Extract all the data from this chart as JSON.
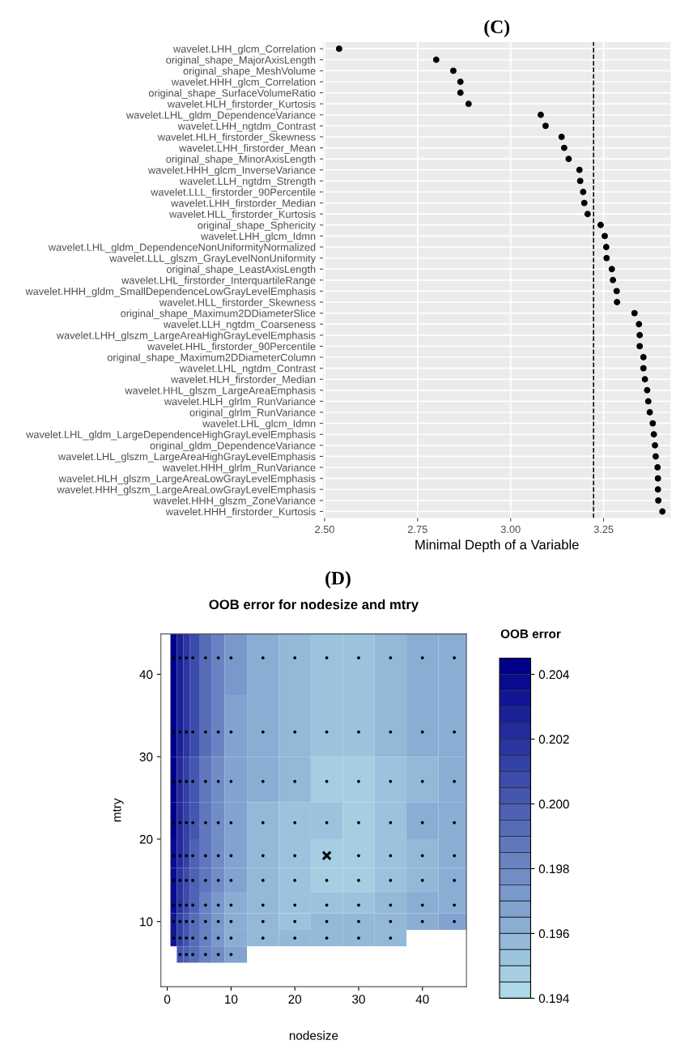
{
  "chart_data": [
    {
      "type": "scatter",
      "title": "(C)",
      "xlabel": "Minimal Depth of a Variable",
      "orientation": "horizontal",
      "color": "#000000",
      "marker": "circle",
      "grid": true,
      "categories": [
        "wavelet.LHH_glcm_Correlation",
        "original_shape_MajorAxisLength",
        "original_shape_MeshVolume",
        "wavelet.HHH_glcm_Correlation",
        "original_shape_SurfaceVolumeRatio",
        "wavelet.HLH_firstorder_Kurtosis",
        "wavelet.LHL_gldm_DependenceVariance",
        "wavelet.LHH_ngtdm_Contrast",
        "wavelet.HLH_firstorder_Skewness",
        "wavelet.LHH_firstorder_Mean",
        "original_shape_MinorAxisLength",
        "wavelet.HHH_glcm_InverseVariance",
        "wavelet.LLH_ngtdm_Strength",
        "wavelet.LLL_firstorder_90Percentile",
        "wavelet.LHH_firstorder_Median",
        "wavelet.HLL_firstorder_Kurtosis",
        "original_shape_Sphericity",
        "wavelet.LHH_glcm_Idmn",
        "wavelet.LHL_gldm_DependenceNonUniformityNormalized",
        "wavelet.LLL_glszm_GrayLevelNonUniformity",
        "original_shape_LeastAxisLength",
        "wavelet.LHL_firstorder_InterquartileRange",
        "wavelet.HHH_gldm_SmallDependenceLowGrayLevelEmphasis",
        "wavelet.HLL_firstorder_Skewness",
        "original_shape_Maximum2DDiameterSlice",
        "wavelet.LLH_ngtdm_Coarseness",
        "wavelet.LHH_glszm_LargeAreaHighGrayLevelEmphasis",
        "wavelet.HHL_firstorder_90Percentile",
        "original_shape_Maximum2DDiameterColumn",
        "wavelet.LHL_ngtdm_Contrast",
        "wavelet.HLH_firstorder_Median",
        "wavelet.HHL_glszm_LargeAreaEmphasis",
        "wavelet.HLH_glrlm_RunVariance",
        "original_glrlm_RunVariance",
        "wavelet.LHL_glcm_Idmn",
        "wavelet.LHL_gldm_LargeDependenceHighGrayLevelEmphasis",
        "original_gldm_DependenceVariance",
        "wavelet.LHL_glszm_LargeAreaHighGrayLevelEmphasis",
        "wavelet.HHH_glrlm_RunVariance",
        "wavelet.HLH_glszm_LargeAreaLowGrayLevelEmphasis",
        "wavelet.HHH_glszm_LargeAreaLowGrayLevelEmphasis",
        "wavelet.HHH_glszm_ZoneVariance",
        "wavelet.HHH_firstorder_Kurtosis"
      ],
      "values": [
        2.539,
        2.8,
        2.846,
        2.865,
        2.865,
        2.887,
        3.081,
        3.094,
        3.137,
        3.144,
        3.156,
        3.185,
        3.187,
        3.195,
        3.198,
        3.207,
        3.242,
        3.253,
        3.257,
        3.258,
        3.272,
        3.275,
        3.285,
        3.286,
        3.333,
        3.345,
        3.347,
        3.347,
        3.357,
        3.357,
        3.361,
        3.367,
        3.37,
        3.374,
        3.382,
        3.385,
        3.388,
        3.39,
        3.395,
        3.396,
        3.396,
        3.397,
        3.408
      ],
      "xlim": [
        2.496,
        3.43
      ],
      "xticks": [
        {
          "value": 2.5,
          "label": "2.50"
        },
        {
          "value": 2.75,
          "label": "2.75"
        },
        {
          "value": 3.0,
          "label": "3.00"
        },
        {
          "value": 3.25,
          "label": "3.25"
        }
      ],
      "ref_lines": [
        {
          "axis": "x",
          "value": 3.223,
          "line_style": "dashed",
          "color": "#000000"
        }
      ]
    },
    {
      "type": "heatmap",
      "title": "(D)",
      "subtitle": "OOB error for nodesize and mtry",
      "xlabel": "nodesize",
      "ylabel": "mtry",
      "clabel": "OOB error",
      "x": [
        1,
        2,
        3,
        4,
        6,
        8,
        10,
        15,
        20,
        25,
        30,
        35,
        40,
        45
      ],
      "y": [
        42,
        33,
        27,
        22,
        18,
        15,
        12,
        10,
        8,
        6
      ],
      "cells": [
        [
          0.2042,
          0.2025,
          0.2015,
          0.2005,
          0.199,
          0.198,
          0.197,
          0.1962,
          0.1957,
          0.1952,
          0.1952,
          0.1958,
          0.1962,
          0.1962
        ],
        [
          0.2042,
          0.2025,
          0.2015,
          0.2005,
          0.199,
          0.198,
          0.1968,
          0.196,
          0.1955,
          0.1952,
          0.1952,
          0.1958,
          0.1962,
          0.1962
        ],
        [
          0.204,
          0.2022,
          0.2012,
          0.2,
          0.1988,
          0.1978,
          0.1968,
          0.196,
          0.1955,
          0.1947,
          0.1947,
          0.1952,
          0.1958,
          0.196
        ],
        [
          0.204,
          0.2022,
          0.201,
          0.2,
          0.1988,
          0.1975,
          0.1965,
          0.1958,
          0.1952,
          0.1952,
          0.1947,
          0.1952,
          0.196,
          0.196
        ],
        [
          0.2038,
          0.202,
          0.201,
          0.1998,
          0.1985,
          0.1975,
          0.1965,
          0.1955,
          0.1952,
          0.1945,
          0.1948,
          0.1952,
          0.1958,
          0.1962
        ],
        [
          0.2035,
          0.2018,
          0.2008,
          0.1998,
          0.1985,
          0.1975,
          0.1965,
          0.1958,
          0.1952,
          0.1947,
          0.1947,
          0.1952,
          0.1958,
          0.1962
        ],
        [
          0.2035,
          0.2015,
          0.2005,
          0.1995,
          0.1982,
          0.1972,
          0.1962,
          0.1955,
          0.1952,
          0.195,
          0.1952,
          0.1955,
          0.196,
          0.1962
        ],
        [
          0.2032,
          0.2012,
          0.2002,
          0.1992,
          0.198,
          0.197,
          0.196,
          0.1955,
          0.1952,
          0.1955,
          0.1955,
          0.1958,
          0.1962,
          0.1965
        ],
        [
          0.203,
          0.201,
          0.2,
          0.199,
          0.198,
          0.197,
          0.196,
          0.1958,
          0.1955,
          0.1955,
          0.1955,
          0.1958,
          null,
          null
        ],
        [
          null,
          0.2,
          0.1995,
          0.199,
          0.198,
          0.1975,
          0.1965,
          null,
          null,
          null,
          null,
          null,
          null,
          null
        ]
      ],
      "clim": [
        0.194,
        0.2045
      ],
      "cticks": [
        {
          "value": 0.194,
          "label": "0.194"
        },
        {
          "value": 0.196,
          "label": "0.196"
        },
        {
          "value": 0.198,
          "label": "0.198"
        },
        {
          "value": 0.2,
          "label": "0.200"
        },
        {
          "value": 0.202,
          "label": "0.202"
        },
        {
          "value": 0.204,
          "label": "0.204"
        }
      ],
      "xlim": [
        -1.0,
        46.9
      ],
      "ylim": [
        2.1,
        44.9
      ],
      "xticks": [
        0,
        10,
        20,
        30,
        40
      ],
      "yticks": [
        10,
        20,
        30,
        40
      ],
      "series": [
        {
          "type": "scatter",
          "color": "#000000",
          "marker": "circle",
          "x": [
            1,
            2,
            3,
            4,
            6,
            8,
            10,
            15,
            20,
            25,
            30,
            35,
            40,
            45
          ],
          "values": [
            42,
            42,
            42,
            42,
            42,
            42,
            42,
            42,
            42,
            42,
            42,
            42,
            42,
            42
          ]
        },
        {
          "type": "scatter",
          "color": "#000000",
          "marker": "circle",
          "x": [
            1,
            2,
            3,
            4,
            6,
            8,
            10,
            15,
            20,
            25,
            30,
            35,
            40,
            45
          ],
          "values": [
            33,
            33,
            33,
            33,
            33,
            33,
            33,
            33,
            33,
            33,
            33,
            33,
            33,
            33
          ]
        },
        {
          "type": "scatter",
          "color": "#000000",
          "marker": "circle",
          "x": [
            1,
            2,
            3,
            4,
            6,
            8,
            10,
            15,
            20,
            25,
            30,
            35,
            40,
            45
          ],
          "values": [
            27,
            27,
            27,
            27,
            27,
            27,
            27,
            27,
            27,
            27,
            27,
            27,
            27,
            27
          ]
        },
        {
          "type": "scatter",
          "color": "#000000",
          "marker": "circle",
          "x": [
            1,
            2,
            3,
            4,
            6,
            8,
            10,
            15,
            20,
            25,
            30,
            35,
            40,
            45
          ],
          "values": [
            22,
            22,
            22,
            22,
            22,
            22,
            22,
            22,
            22,
            22,
            22,
            22,
            22,
            22
          ]
        },
        {
          "type": "scatter",
          "color": "#000000",
          "marker": "circle",
          "x": [
            1,
            2,
            3,
            4,
            6,
            8,
            10,
            15,
            20,
            30,
            35,
            40,
            45
          ],
          "values": [
            18,
            18,
            18,
            18,
            18,
            18,
            18,
            18,
            18,
            18,
            18,
            18,
            18
          ]
        },
        {
          "type": "scatter",
          "color": "#000000",
          "marker": "circle",
          "x": [
            1,
            2,
            3,
            4,
            6,
            8,
            10,
            15,
            20,
            25,
            30,
            35,
            40,
            45
          ],
          "values": [
            15,
            15,
            15,
            15,
            15,
            15,
            15,
            15,
            15,
            15,
            15,
            15,
            15,
            15
          ]
        },
        {
          "type": "scatter",
          "color": "#000000",
          "marker": "circle",
          "x": [
            1,
            2,
            3,
            4,
            6,
            8,
            10,
            15,
            20,
            25,
            30,
            35,
            40,
            45
          ],
          "values": [
            12,
            12,
            12,
            12,
            12,
            12,
            12,
            12,
            12,
            12,
            12,
            12,
            12,
            12
          ]
        },
        {
          "type": "scatter",
          "color": "#000000",
          "marker": "circle",
          "x": [
            1,
            2,
            3,
            4,
            6,
            8,
            10,
            15,
            20,
            25,
            30,
            35,
            40,
            45
          ],
          "values": [
            10,
            10,
            10,
            10,
            10,
            10,
            10,
            10,
            10,
            10,
            10,
            10,
            10,
            10
          ]
        },
        {
          "type": "scatter",
          "color": "#000000",
          "marker": "circle",
          "x": [
            1,
            2,
            3,
            4,
            6,
            8,
            10,
            15,
            20,
            25,
            30,
            35
          ],
          "values": [
            8,
            8,
            8,
            8,
            8,
            8,
            8,
            8,
            8,
            8,
            8,
            8
          ]
        },
        {
          "type": "scatter",
          "color": "#000000",
          "marker": "circle",
          "x": [
            2,
            3,
            4,
            6,
            8,
            10
          ],
          "values": [
            6,
            6,
            6,
            6,
            6,
            6
          ]
        },
        {
          "type": "scatter",
          "color": "#000000",
          "marker": "cross",
          "x": [
            25
          ],
          "values": [
            18
          ]
        }
      ]
    }
  ]
}
